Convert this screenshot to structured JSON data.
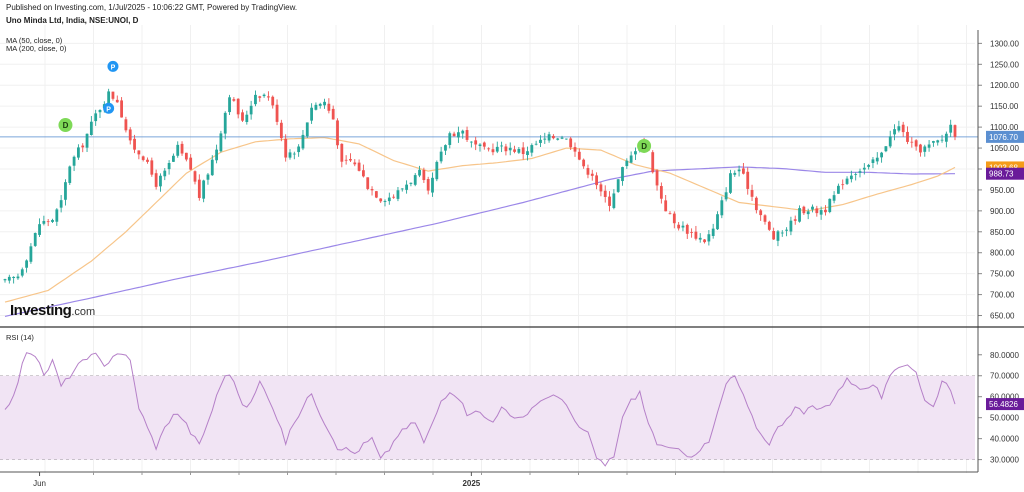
{
  "header": {
    "published": "Published on Investing.com, 1/Jul/2025 - 10:06:22 GMT, Powered by TradingView.",
    "symbol": "Uno Minda Ltd, India, NSE:UNOI, D",
    "ma50_label": "MA (50, close, 0)",
    "ma200_label": "MA (200, close, 0)",
    "rsi_label": "RSI (14)"
  },
  "logo": {
    "main": "Investing",
    "suffix": ".com"
  },
  "colors": {
    "up": "#26a69a",
    "down": "#ef5350",
    "ma50": "#f7c58a",
    "ma200": "#9b87e8",
    "rsi_line": "#b580c8",
    "rsi_band": "#f1e4f4",
    "last_price": "#5b8fd1",
    "ma50_tag": "#f59c1a",
    "ma200_tag": "#6a1b9a",
    "marker_d": "#7ed957",
    "marker_p": "#2196f3"
  },
  "chart_data": [
    {
      "type": "candlestick",
      "name": "price",
      "y_ticks": [
        "1300.00",
        "1250.00",
        "1200.00",
        "1150.00",
        "1100.00",
        "1050.00",
        "1000.00",
        "950.00",
        "900.00",
        "850.00",
        "800.00",
        "750.00",
        "700.00",
        "650.00"
      ],
      "ylim": [
        625,
        1320
      ],
      "x_labels": [
        "Jun",
        "2025"
      ],
      "last_price": 1076.7,
      "last_price_label": "1076.70",
      "ma50_last": 1003.68,
      "ma50_label": "1003.68",
      "ma200_last": 988.73,
      "ma200_label": "988.73",
      "markers": [
        {
          "label": "D",
          "kind": "dividend",
          "bar": 14,
          "price": 1105
        },
        {
          "label": "P",
          "kind": "split",
          "bar": 25,
          "price": 1245
        },
        {
          "label": "P",
          "kind": "split",
          "bar": 24,
          "price": 1145
        },
        {
          "label": "D",
          "kind": "dividend",
          "bar": 148,
          "price": 1055
        }
      ],
      "anchors": [
        [
          0,
          730
        ],
        [
          3,
          745
        ],
        [
          5,
          790
        ],
        [
          8,
          870
        ],
        [
          11,
          880
        ],
        [
          13,
          920
        ],
        [
          15,
          1010
        ],
        [
          18,
          1060
        ],
        [
          21,
          1130
        ],
        [
          24,
          1180
        ],
        [
          26,
          1165
        ],
        [
          29,
          1060
        ],
        [
          32,
          1030
        ],
        [
          35,
          965
        ],
        [
          37,
          990
        ],
        [
          40,
          1050
        ],
        [
          43,
          1000
        ],
        [
          45,
          935
        ],
        [
          49,
          1050
        ],
        [
          52,
          1180
        ],
        [
          55,
          1110
        ],
        [
          58,
          1180
        ],
        [
          61,
          1175
        ],
        [
          63,
          1120
        ],
        [
          65,
          1035
        ],
        [
          68,
          1050
        ],
        [
          71,
          1150
        ],
        [
          74,
          1160
        ],
        [
          76,
          1120
        ],
        [
          78,
          1010
        ],
        [
          80,
          1020
        ],
        [
          82,
          1000
        ],
        [
          84,
          960
        ],
        [
          87,
          930
        ],
        [
          90,
          935
        ],
        [
          93,
          965
        ],
        [
          96,
          990
        ],
        [
          98,
          940
        ],
        [
          100,
          1010
        ],
        [
          103,
          1085
        ],
        [
          106,
          1090
        ],
        [
          108,
          1060
        ],
        [
          111,
          1045
        ],
        [
          114,
          1050
        ],
        [
          117,
          1050
        ],
        [
          120,
          1040
        ],
        [
          123,
          1060
        ],
        [
          126,
          1075
        ],
        [
          129,
          1080
        ],
        [
          132,
          1050
        ],
        [
          134,
          1000
        ],
        [
          136,
          990
        ],
        [
          138,
          940
        ],
        [
          140,
          920
        ],
        [
          143,
          1000
        ],
        [
          145,
          1030
        ],
        [
          147,
          1070
        ],
        [
          149,
          1040
        ],
        [
          151,
          960
        ],
        [
          153,
          905
        ],
        [
          155,
          870
        ],
        [
          157,
          860
        ],
        [
          160,
          840
        ],
        [
          162,
          830
        ],
        [
          164,
          855
        ],
        [
          166,
          920
        ],
        [
          168,
          985
        ],
        [
          170,
          1000
        ],
        [
          172,
          960
        ],
        [
          174,
          910
        ],
        [
          176,
          870
        ],
        [
          178,
          835
        ],
        [
          180,
          850
        ],
        [
          182,
          870
        ],
        [
          184,
          900
        ],
        [
          186,
          905
        ],
        [
          188,
          900
        ],
        [
          190,
          905
        ],
        [
          192,
          935
        ],
        [
          194,
          970
        ],
        [
          196,
          990
        ],
        [
          198,
          1000
        ],
        [
          200,
          1005
        ],
        [
          203,
          1035
        ],
        [
          205,
          1085
        ],
        [
          207,
          1100
        ],
        [
          209,
          1070
        ],
        [
          211,
          1045
        ],
        [
          213,
          1050
        ],
        [
          215,
          1060
        ],
        [
          217,
          1070
        ],
        [
          219,
          1105
        ],
        [
          220,
          1085
        ]
      ],
      "ma50_anchors": [
        [
          0,
          682
        ],
        [
          10,
          710
        ],
        [
          20,
          780
        ],
        [
          28,
          850
        ],
        [
          35,
          920
        ],
        [
          42,
          990
        ],
        [
          50,
          1040
        ],
        [
          58,
          1065
        ],
        [
          66,
          1072
        ],
        [
          74,
          1075
        ],
        [
          82,
          1060
        ],
        [
          90,
          1020
        ],
        [
          98,
          995
        ],
        [
          106,
          1008
        ],
        [
          114,
          1015
        ],
        [
          122,
          1025
        ],
        [
          130,
          1050
        ],
        [
          138,
          1045
        ],
        [
          146,
          1010
        ],
        [
          154,
          990
        ],
        [
          162,
          955
        ],
        [
          170,
          920
        ],
        [
          178,
          910
        ],
        [
          186,
          900
        ],
        [
          194,
          915
        ],
        [
          202,
          940
        ],
        [
          210,
          963
        ],
        [
          216,
          983
        ],
        [
          220,
          1003.68
        ]
      ],
      "ma200_anchors": [
        [
          0,
          648
        ],
        [
          20,
          692
        ],
        [
          40,
          738
        ],
        [
          60,
          780
        ],
        [
          80,
          825
        ],
        [
          100,
          870
        ],
        [
          120,
          920
        ],
        [
          140,
          975
        ],
        [
          150,
          995
        ],
        [
          160,
          1000
        ],
        [
          170,
          1005
        ],
        [
          180,
          1001
        ],
        [
          190,
          992
        ],
        [
          200,
          992
        ],
        [
          210,
          988
        ],
        [
          220,
          988.73
        ]
      ]
    },
    {
      "type": "line",
      "name": "RSI (14)",
      "y_ticks": [
        "80.0000",
        "70.0000",
        "60.0000",
        "50.0000",
        "40.0000",
        "30.0000"
      ],
      "ylim": [
        26,
        88
      ],
      "band": [
        30,
        70
      ],
      "last_value": 56.4826,
      "last_label": "56.4826",
      "anchors": [
        [
          0,
          55
        ],
        [
          2,
          60
        ],
        [
          4,
          75
        ],
        [
          5,
          82
        ],
        [
          7,
          80
        ],
        [
          9,
          70
        ],
        [
          11,
          77
        ],
        [
          13,
          65
        ],
        [
          15,
          70
        ],
        [
          17,
          75
        ],
        [
          19,
          78
        ],
        [
          21,
          80
        ],
        [
          23,
          74
        ],
        [
          25,
          80
        ],
        [
          27,
          81
        ],
        [
          29,
          77
        ],
        [
          31,
          55
        ],
        [
          33,
          45
        ],
        [
          35,
          36
        ],
        [
          37,
          45
        ],
        [
          39,
          52
        ],
        [
          41,
          50
        ],
        [
          43,
          43
        ],
        [
          45,
          37
        ],
        [
          47,
          48
        ],
        [
          49,
          60
        ],
        [
          51,
          71
        ],
        [
          53,
          68
        ],
        [
          55,
          55
        ],
        [
          57,
          57
        ],
        [
          59,
          67
        ],
        [
          61,
          60
        ],
        [
          63,
          50
        ],
        [
          65,
          38
        ],
        [
          67,
          48
        ],
        [
          69,
          55
        ],
        [
          71,
          62
        ],
        [
          73,
          52
        ],
        [
          75,
          44
        ],
        [
          77,
          36
        ],
        [
          79,
          35
        ],
        [
          81,
          33
        ],
        [
          83,
          37
        ],
        [
          85,
          40
        ],
        [
          87,
          30
        ],
        [
          89,
          35
        ],
        [
          91,
          42
        ],
        [
          93,
          45
        ],
        [
          95,
          48
        ],
        [
          97,
          38
        ],
        [
          99,
          47
        ],
        [
          101,
          58
        ],
        [
          103,
          63
        ],
        [
          105,
          60
        ],
        [
          107,
          52
        ],
        [
          109,
          54
        ],
        [
          111,
          50
        ],
        [
          113,
          48
        ],
        [
          115,
          56
        ],
        [
          117,
          50
        ],
        [
          119,
          49
        ],
        [
          121,
          52
        ],
        [
          123,
          57
        ],
        [
          125,
          58
        ],
        [
          127,
          62
        ],
        [
          129,
          58
        ],
        [
          131,
          52
        ],
        [
          133,
          45
        ],
        [
          135,
          42
        ],
        [
          137,
          31
        ],
        [
          139,
          27
        ],
        [
          141,
          32
        ],
        [
          143,
          50
        ],
        [
          145,
          58
        ],
        [
          147,
          62
        ],
        [
          149,
          47
        ],
        [
          151,
          38
        ],
        [
          153,
          35
        ],
        [
          155,
          35
        ],
        [
          157,
          33
        ],
        [
          159,
          32
        ],
        [
          161,
          35
        ],
        [
          163,
          38
        ],
        [
          165,
          52
        ],
        [
          167,
          66
        ],
        [
          169,
          70
        ],
        [
          171,
          60
        ],
        [
          173,
          50
        ],
        [
          175,
          42
        ],
        [
          177,
          38
        ],
        [
          179,
          45
        ],
        [
          181,
          50
        ],
        [
          183,
          55
        ],
        [
          185,
          52
        ],
        [
          187,
          55
        ],
        [
          189,
          54
        ],
        [
          191,
          57
        ],
        [
          193,
          63
        ],
        [
          195,
          68
        ],
        [
          197,
          66
        ],
        [
          199,
          63
        ],
        [
          201,
          66
        ],
        [
          203,
          60
        ],
        [
          205,
          69
        ],
        [
          207,
          74
        ],
        [
          209,
          76
        ],
        [
          211,
          72
        ],
        [
          213,
          58
        ],
        [
          215,
          55
        ],
        [
          217,
          68
        ],
        [
          219,
          64
        ],
        [
          220,
          56.48
        ]
      ]
    }
  ]
}
